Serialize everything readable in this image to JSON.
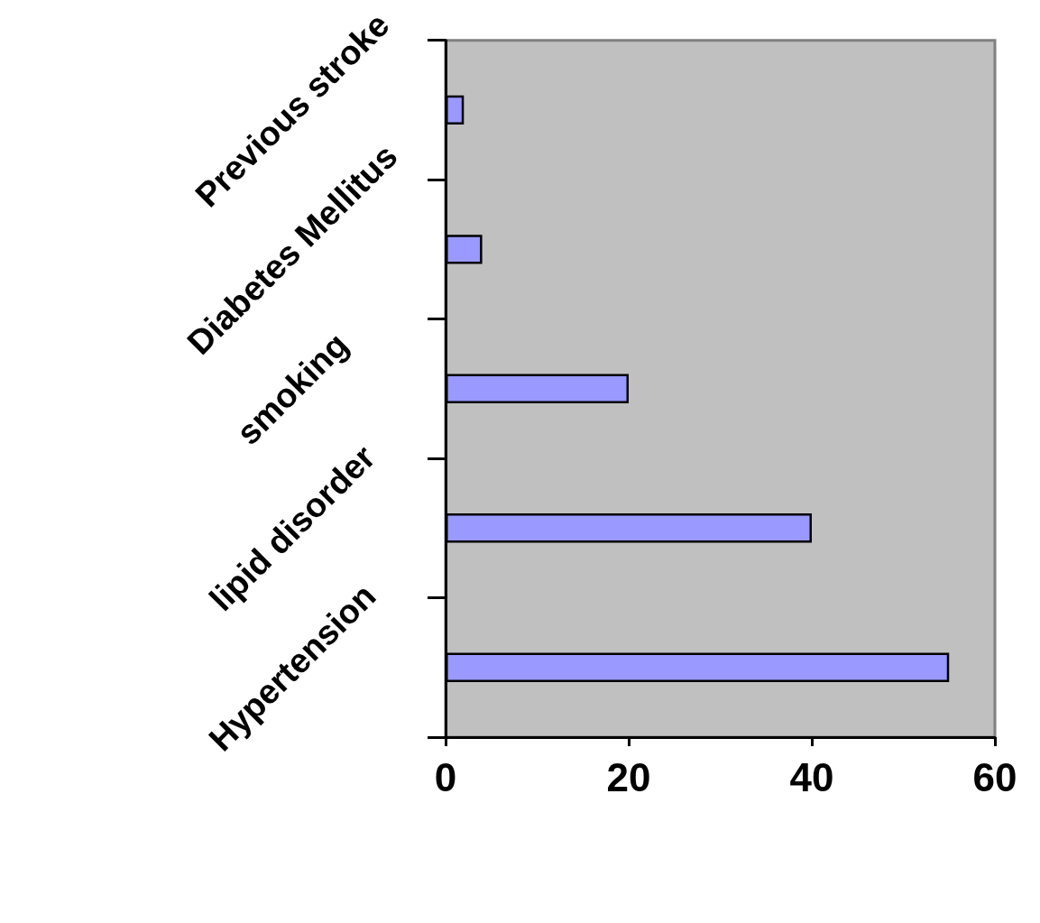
{
  "chart_data": {
    "type": "bar",
    "orientation": "horizontal",
    "categories": [
      "Previous stroke",
      "Diabetes Mellitus",
      "smoking",
      "lipid disorder",
      "Hypertension"
    ],
    "values": [
      2,
      4,
      20,
      40,
      55
    ],
    "color": "#9999ff",
    "xlim": [
      0,
      60
    ],
    "xticks": [
      0,
      20,
      40,
      60
    ],
    "grid": false
  }
}
